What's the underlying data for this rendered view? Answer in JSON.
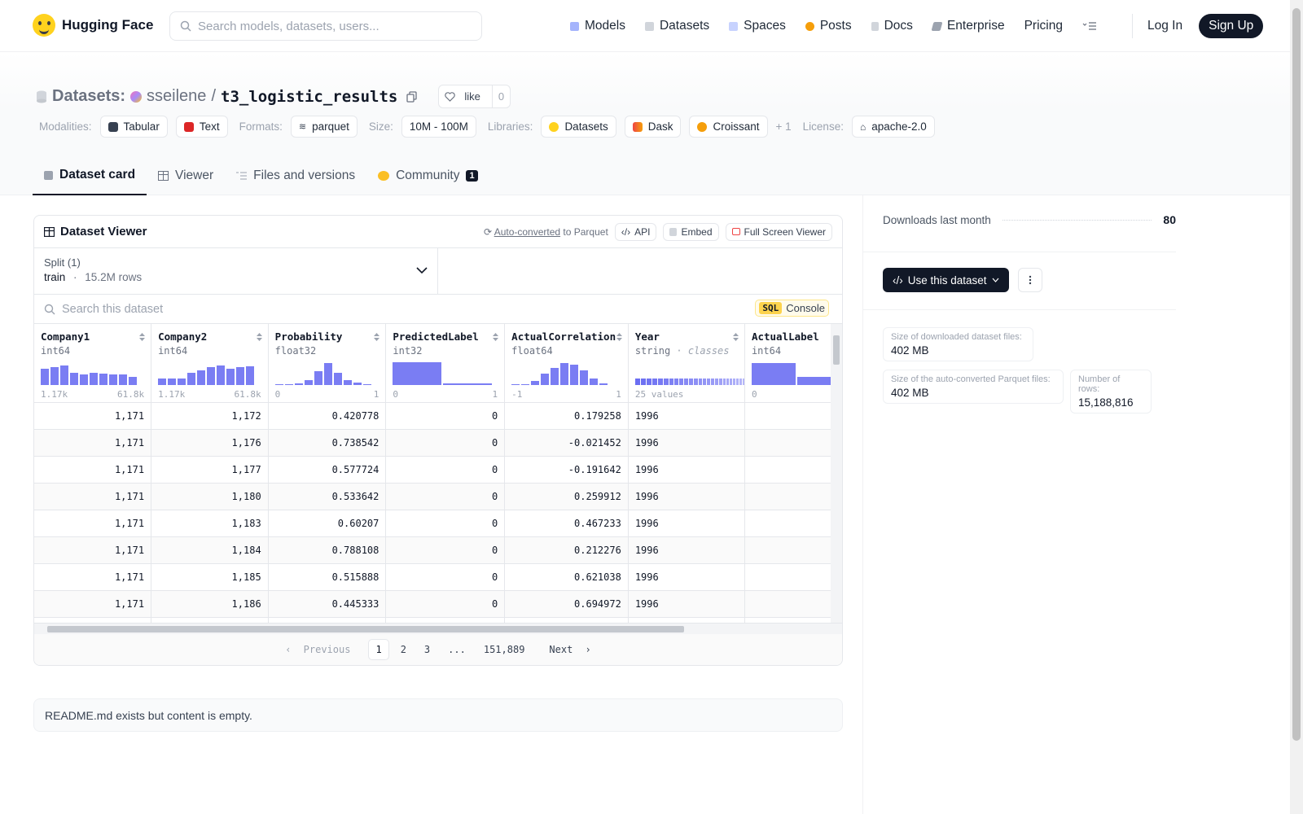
{
  "nav": {
    "brand": "Hugging Face",
    "search_placeholder": "Search models, datasets, users...",
    "links": [
      "Models",
      "Datasets",
      "Spaces",
      "Posts",
      "Docs",
      "Enterprise",
      "Pricing"
    ],
    "login": "Log In",
    "signup": "Sign Up"
  },
  "header": {
    "datasets_label": "Datasets:",
    "owner": "sseilene",
    "separator": "/",
    "repo": "t3_logistic_results",
    "like_label": "like",
    "like_count": "0",
    "modalities_label": "Modalities:",
    "modalities": [
      "Tabular",
      "Text"
    ],
    "formats_label": "Formats:",
    "formats": [
      "parquet"
    ],
    "size_label": "Size:",
    "size": "10M - 100M",
    "libraries_label": "Libraries:",
    "libraries": [
      "Datasets",
      "Dask",
      "Croissant"
    ],
    "libraries_more": "+ 1",
    "license_label": "License:",
    "license": "apache-2.0"
  },
  "tabs": [
    {
      "label": "Dataset card",
      "active": true
    },
    {
      "label": "Viewer"
    },
    {
      "label": "Files and versions"
    },
    {
      "label": "Community",
      "badge": "1"
    }
  ],
  "viewer": {
    "title": "Dataset Viewer",
    "auto_converted": "Auto-converted",
    "to_parquet": " to Parquet",
    "api": "API",
    "embed": "Embed",
    "fullscreen": "Full Screen Viewer",
    "split_label": "Split (1)",
    "split_name": "train",
    "split_sep": "·",
    "split_rows": "15.2M rows",
    "search_placeholder": "Search this dataset",
    "sql": "SQL",
    "console": "Console",
    "columns": [
      {
        "name": "Company1",
        "type": "int64",
        "range_min": "1.17k",
        "range_max": "61.8k",
        "hist": [
          0.7,
          0.78,
          0.85,
          0.55,
          0.45,
          0.52,
          0.5,
          0.47,
          0.45,
          0.35
        ]
      },
      {
        "name": "Company2",
        "type": "int64",
        "range_min": "1.17k",
        "range_max": "61.8k",
        "hist": [
          0.3,
          0.3,
          0.27,
          0.55,
          0.65,
          0.78,
          0.85,
          0.72,
          0.78,
          0.82
        ]
      },
      {
        "name": "Probability",
        "type": "float32",
        "range_min": "0",
        "range_max": "1",
        "hist": [
          0.04,
          0.04,
          0.07,
          0.2,
          0.6,
          0.95,
          0.55,
          0.2,
          0.1,
          0.05
        ]
      },
      {
        "name": "PredictedLabel",
        "type": "int32",
        "range_min": "0",
        "range_max": "1",
        "hist": [
          1.0,
          0.07
        ]
      },
      {
        "name": "ActualCorrelation",
        "type": "float64",
        "range_min": "-1",
        "range_max": "1",
        "hist": [
          0.04,
          0.05,
          0.18,
          0.5,
          0.75,
          0.95,
          0.88,
          0.65,
          0.3,
          0.06
        ]
      },
      {
        "name": "Year",
        "type": "string",
        "type_suffix": "classes",
        "range_min": "25 values",
        "range_max": ""
      },
      {
        "name": "ActualLabel",
        "type": "int64",
        "range_min": "0",
        "range_max": "",
        "hist": [
          0.95,
          0.35
        ]
      }
    ],
    "rows": [
      [
        "1,171",
        "1,172",
        "0.420778",
        "0",
        "0.179258",
        "1996",
        ""
      ],
      [
        "1,171",
        "1,176",
        "0.738542",
        "0",
        "-0.021452",
        "1996",
        ""
      ],
      [
        "1,171",
        "1,177",
        "0.577724",
        "0",
        "-0.191642",
        "1996",
        ""
      ],
      [
        "1,171",
        "1,180",
        "0.533642",
        "0",
        "0.259912",
        "1996",
        ""
      ],
      [
        "1,171",
        "1,183",
        "0.60207",
        "0",
        "0.467233",
        "1996",
        ""
      ],
      [
        "1,171",
        "1,184",
        "0.788108",
        "0",
        "0.212276",
        "1996",
        ""
      ],
      [
        "1,171",
        "1,185",
        "0.515888",
        "0",
        "0.621038",
        "1996",
        ""
      ],
      [
        "1,171",
        "1,186",
        "0.445333",
        "0",
        "0.694972",
        "1996",
        ""
      ]
    ],
    "pager": {
      "previous": "Previous",
      "pages": [
        "1",
        "2",
        "3",
        "...",
        "151,889"
      ],
      "current": "1",
      "next": "Next"
    }
  },
  "readme_text": "README.md exists but content is empty.",
  "sidebar": {
    "downloads_label": "Downloads last month",
    "downloads_value": "80",
    "use_dataset": "Use this dataset",
    "size_downloaded_label": "Size of downloaded dataset files:",
    "size_downloaded": "402 MB",
    "size_parquet_label": "Size of the auto-converted Parquet files:",
    "size_parquet": "402 MB",
    "num_rows_label": "Number of rows:",
    "num_rows": "15,188,816"
  },
  "colors": {
    "accent": "#111827",
    "histogram": "#6366f1",
    "sql_badge": "#fcd34d"
  }
}
